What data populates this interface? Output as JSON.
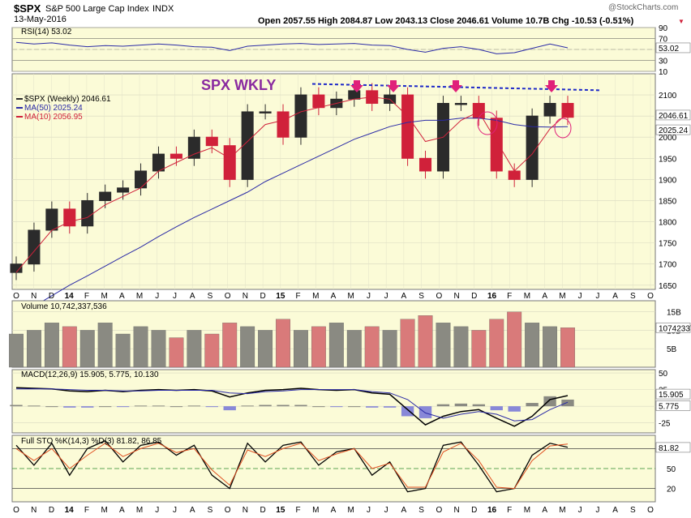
{
  "header": {
    "symbol": "$SPX",
    "name": "S&P 500 Large Cap Index",
    "exchange": "INDX",
    "date": "13-May-2016",
    "ohlc": "Open 2057.55   High 2084.87   Low 2043.13   Close 2046.61   Volume 10.7B   Chg -10.53 (-0.51%)",
    "change_icon": "down-triangle-icon",
    "watermark": "@StockCharts.com"
  },
  "colors": {
    "panel_bg": "#fbfbd7",
    "up": "#2b2b2b",
    "down": "#d0213a",
    "ma50": "#2a2aa6",
    "ma10": "#d0213a",
    "annotation": "#e0207a",
    "title_purple": "#8a2aa0",
    "trendline": "#1c27c8"
  },
  "chart_data": [
    {
      "type": "line",
      "panel": "RSI",
      "title": "RSI(14) 53.02",
      "y_ticks": [
        90,
        70,
        50,
        30,
        10
      ],
      "ylim": [
        10,
        90
      ],
      "guides": [
        70,
        30
      ],
      "last_value": "53.02",
      "x": [
        "O",
        "N",
        "D",
        "14",
        "F",
        "M",
        "A",
        "M",
        "J",
        "J",
        "A",
        "S",
        "O",
        "N",
        "D",
        "15",
        "F",
        "M",
        "A",
        "M",
        "J",
        "J",
        "A",
        "S",
        "O",
        "N",
        "D",
        "16",
        "F",
        "M",
        "A",
        "M"
      ],
      "values": [
        63,
        60,
        62,
        58,
        55,
        57,
        56,
        58,
        60,
        58,
        55,
        54,
        48,
        56,
        58,
        60,
        61,
        59,
        60,
        61,
        58,
        57,
        50,
        45,
        52,
        55,
        50,
        42,
        44,
        52,
        60,
        53
      ]
    },
    {
      "type": "candlestick",
      "panel": "price",
      "title": "SPX WKLY",
      "legend": [
        "$SPX (Weekly) 2046.61",
        "MA(50) 2025.24",
        "MA(10) 2056.95"
      ],
      "y_ticks": [
        2100,
        2050,
        2000,
        1950,
        1900,
        1850,
        1800,
        1750,
        1700,
        1650
      ],
      "ylim": [
        1640,
        2150
      ],
      "x_labels": [
        "O",
        "N",
        "D",
        "14",
        "F",
        "M",
        "A",
        "M",
        "J",
        "J",
        "A",
        "S",
        "O",
        "N",
        "D",
        "15",
        "F",
        "M",
        "A",
        "M",
        "J",
        "J",
        "A",
        "S",
        "O",
        "N",
        "D",
        "16",
        "F",
        "M",
        "A",
        "M",
        "J",
        "J",
        "A",
        "S",
        "O"
      ],
      "price_labels": [
        "2046.61",
        "2025.24"
      ],
      "months_close": [
        1700,
        1780,
        1830,
        1790,
        1850,
        1870,
        1880,
        1920,
        1960,
        1950,
        2000,
        1980,
        1900,
        2060,
        2060,
        2000,
        2100,
        2070,
        2090,
        2110,
        2080,
        2100,
        1950,
        1920,
        2080,
        2080,
        2045,
        1920,
        1900,
        2050,
        2080,
        2047
      ],
      "ma50": [
        1580,
        1600,
        1625,
        1650,
        1672,
        1695,
        1718,
        1740,
        1765,
        1788,
        1810,
        1830,
        1850,
        1870,
        1895,
        1915,
        1935,
        1955,
        1975,
        1995,
        2010,
        2025,
        2035,
        2040,
        2040,
        2045,
        2045,
        2040,
        2030,
        2025,
        2024,
        2025
      ],
      "ma10": [
        1680,
        1730,
        1780,
        1800,
        1810,
        1840,
        1860,
        1880,
        1920,
        1940,
        1960,
        1975,
        1950,
        1990,
        2030,
        2040,
        2060,
        2070,
        2080,
        2090,
        2095,
        2090,
        2050,
        1990,
        2000,
        2040,
        2060,
        1990,
        1920,
        1960,
        2020,
        2057
      ],
      "trendline": [
        [
          2126,
          "M"
        ],
        [
          2111,
          "J"
        ]
      ],
      "annotations": [
        "arrow-down",
        "arrow-down",
        "arrow-down",
        "arrow-down",
        "circle",
        "circle"
      ]
    },
    {
      "type": "bar",
      "panel": "volume",
      "title": "Volume 10,742,337,536",
      "y_ticks": [
        "15B",
        "10B",
        "5B"
      ],
      "ylim": [
        0,
        18
      ],
      "last_value": "10742337536",
      "values": [
        9,
        10,
        12,
        11,
        10,
        12,
        9,
        11,
        10,
        8,
        10,
        9,
        12,
        11,
        10,
        13,
        10,
        11,
        12,
        10,
        11,
        10,
        13,
        14,
        12,
        11,
        10,
        13,
        15,
        12,
        11,
        10.7
      ]
    },
    {
      "type": "line",
      "panel": "MACD",
      "title": "MACD(12,26,9) 15.905, 5.775, 10.130",
      "y_ticks": [
        50,
        25,
        0,
        -25
      ],
      "ylim": [
        -40,
        55
      ],
      "last_values": [
        "15.905",
        "5.775"
      ],
      "macd": [
        28,
        27,
        26,
        23,
        22,
        24,
        22,
        24,
        25,
        24,
        25,
        23,
        14,
        20,
        24,
        25,
        27,
        25,
        24,
        25,
        20,
        18,
        -5,
        -28,
        -15,
        -8,
        -5,
        -18,
        -30,
        -15,
        10,
        16
      ],
      "signal": [
        26,
        26,
        26,
        25,
        24,
        24,
        23,
        23,
        24,
        24,
        24,
        24,
        20,
        19,
        22,
        23,
        25,
        25,
        25,
        25,
        22,
        20,
        10,
        -10,
        -18,
        -12,
        -8,
        -12,
        -22,
        -20,
        -5,
        6
      ],
      "histogram": [
        2,
        1,
        0,
        -2,
        -2,
        0,
        -1,
        1,
        1,
        0,
        1,
        -1,
        -6,
        1,
        2,
        2,
        2,
        0,
        -1,
        0,
        -2,
        -2,
        -15,
        -18,
        3,
        4,
        3,
        -6,
        -8,
        5,
        15,
        10
      ]
    },
    {
      "type": "line",
      "panel": "STO",
      "title": "Full STO %K(14,3) %D(3) 81.82, 86.85",
      "y_ticks": [
        80,
        50,
        20
      ],
      "ylim": [
        0,
        100
      ],
      "guides": [
        80,
        50,
        20
      ],
      "last_value": "81.82",
      "k": [
        85,
        55,
        88,
        40,
        80,
        92,
        60,
        85,
        90,
        70,
        85,
        40,
        20,
        88,
        60,
        85,
        90,
        55,
        75,
        80,
        40,
        60,
        15,
        20,
        85,
        90,
        55,
        15,
        20,
        70,
        88,
        82
      ],
      "d": [
        80,
        62,
        80,
        50,
        70,
        88,
        68,
        80,
        88,
        74,
        80,
        48,
        25,
        78,
        68,
        80,
        88,
        62,
        72,
        80,
        50,
        58,
        22,
        22,
        75,
        88,
        62,
        22,
        20,
        62,
        84,
        87
      ]
    }
  ]
}
